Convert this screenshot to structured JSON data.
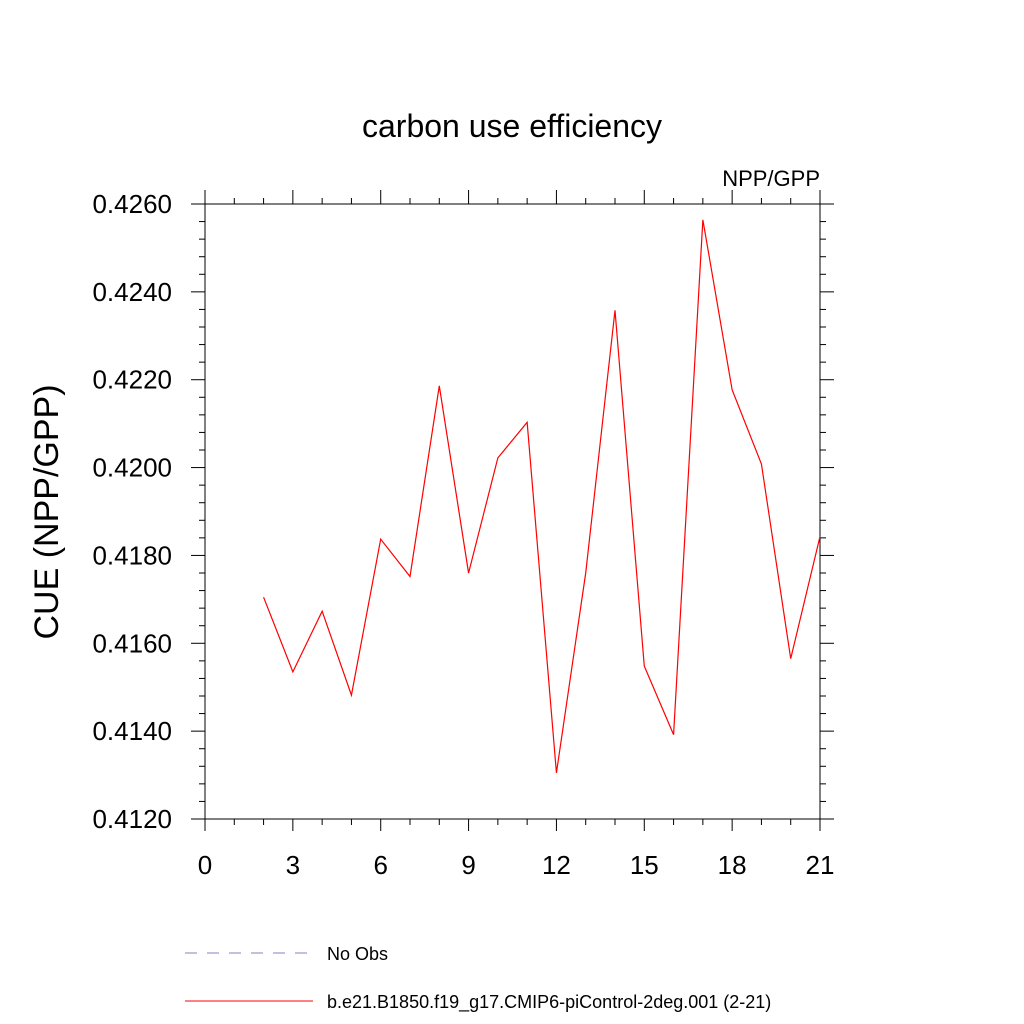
{
  "chart_data": {
    "type": "line",
    "title": "carbon use efficiency",
    "subtitle": "NPP/GPP",
    "xlabel": "",
    "ylabel": "CUE  (NPP/GPP)",
    "xlim": [
      0,
      21
    ],
    "ylim": [
      0.412,
      0.426
    ],
    "xticks": [
      0,
      3,
      6,
      9,
      12,
      15,
      18,
      21
    ],
    "yticks": [
      0.412,
      0.414,
      0.416,
      0.418,
      0.42,
      0.422,
      0.424,
      0.426
    ],
    "ytick_labels": [
      "0.4120",
      "0.4140",
      "0.4160",
      "0.4180",
      "0.4200",
      "0.4220",
      "0.4240",
      "0.4260"
    ],
    "grid": false,
    "legend_position": "bottom",
    "series": [
      {
        "name": "No Obs",
        "color": "#8080c0",
        "dash": true,
        "x": [],
        "y": []
      },
      {
        "name": "b.e21.B1850.f19_g17.CMIP6-piControl-2deg.001 (2-21)",
        "color": "#ff0000",
        "dash": false,
        "x": [
          2,
          3,
          4,
          5,
          6,
          7,
          8,
          9,
          10,
          11,
          12,
          13,
          14,
          15,
          16,
          17,
          18,
          19,
          20,
          21
        ],
        "y": [
          0.41705,
          0.41535,
          0.41673,
          0.41482,
          0.41837,
          0.41752,
          0.42186,
          0.4176,
          0.42022,
          0.42103,
          0.41305,
          0.4176,
          0.42358,
          0.41548,
          0.41392,
          0.42564,
          0.42177,
          0.42008,
          0.41565,
          0.41843
        ]
      }
    ]
  }
}
